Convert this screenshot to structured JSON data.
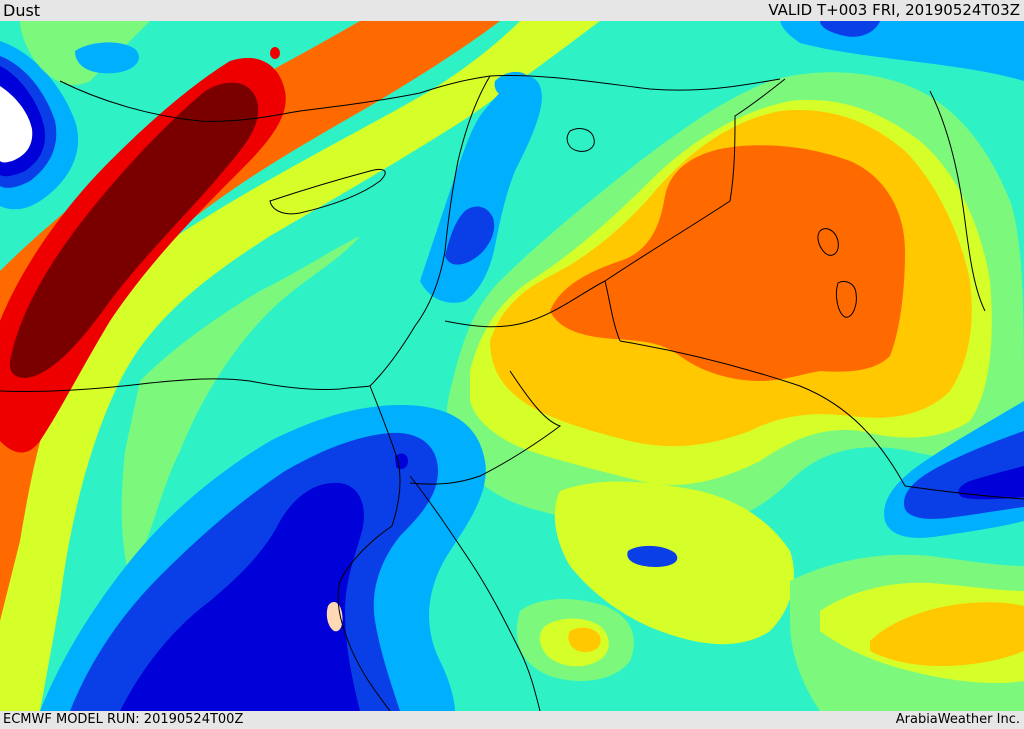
{
  "header": {
    "product": "Dust",
    "valid": "VALID T+003 FRI, 20190524T03Z"
  },
  "footer": {
    "model_run": "ECMWF MODEL RUN: 20190524T00Z",
    "credit": "ArabiaWeather Inc."
  },
  "palette": {
    "level_1": "#02008f",
    "level_2": "#0000d8",
    "level_3": "#0a3ee6",
    "level_4": "#00b0ff",
    "level_5": "#2ef2c6",
    "level_6": "#7cf97c",
    "level_7": "#d6ff2a",
    "level_8": "#ffc800",
    "level_9": "#ff6a00",
    "level_10": "#ee0000",
    "level_11": "#7a0000",
    "white_patch": "#ffffff",
    "tan_patch": "#ffd9b3",
    "boundary": "#000000"
  }
}
